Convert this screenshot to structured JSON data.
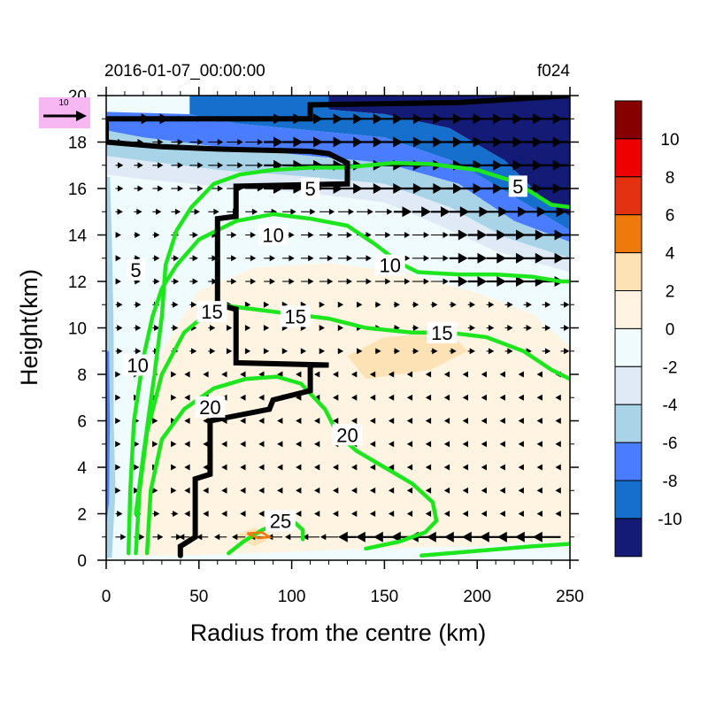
{
  "chart_data": {
    "type": "contour",
    "title_left": "2016-01-07_00:00:00",
    "title_right": "f024",
    "xlabel": "Radius from the centre (km)",
    "ylabel": "Height(km)",
    "xlim": [
      0,
      250
    ],
    "ylim": [
      0,
      20
    ],
    "x_ticks": [
      0,
      50,
      100,
      150,
      200,
      250
    ],
    "y_ticks": [
      0,
      2,
      4,
      6,
      8,
      10,
      12,
      14,
      16,
      18,
      20
    ],
    "reference_vector": {
      "label": "10",
      "color": "#f7b7f2"
    },
    "colorbar": {
      "levels": [
        "10",
        "8",
        "6",
        "4",
        "2",
        "0",
        "-2",
        "-4",
        "-6",
        "-8",
        "-10"
      ],
      "colors": [
        "#870000",
        "#ee0000",
        "#e23212",
        "#ed7a0a",
        "#fde2b6",
        "#fff4e2",
        "#f0fbfd",
        "#dfeaf6",
        "#a9d3e6",
        "#4a7cff",
        "#166fcc",
        "#131b77"
      ]
    },
    "fill_regions": [
      {
        "level": "-10",
        "color": "#131b77",
        "points": [
          [
            120,
            20
          ],
          [
            250,
            20
          ],
          [
            250,
            14.8
          ],
          [
            235,
            15.6
          ],
          [
            215,
            17.2
          ],
          [
            185,
            18.6
          ],
          [
            150,
            19.2
          ],
          [
            120,
            19.4
          ]
        ]
      },
      {
        "level": "-8",
        "color": "#166fcc",
        "points": [
          [
            45,
            20
          ],
          [
            120,
            20
          ],
          [
            120,
            19.4
          ],
          [
            150,
            19.2
          ],
          [
            185,
            18.6
          ],
          [
            215,
            17.2
          ],
          [
            235,
            15.6
          ],
          [
            250,
            14.8
          ],
          [
            250,
            14.2
          ],
          [
            225,
            15.4
          ],
          [
            190,
            17.1
          ],
          [
            150,
            18.2
          ],
          [
            110,
            18.5
          ],
          [
            70,
            18.8
          ],
          [
            45,
            19.2
          ]
        ]
      },
      {
        "level": "-6",
        "color": "#4a7cff",
        "points": [
          [
            0,
            19.3
          ],
          [
            45,
            19.2
          ],
          [
            70,
            18.8
          ],
          [
            110,
            18.5
          ],
          [
            150,
            18.2
          ],
          [
            190,
            17.1
          ],
          [
            225,
            15.4
          ],
          [
            250,
            14.2
          ],
          [
            250,
            13.7
          ],
          [
            220,
            14.6
          ],
          [
            190,
            16.2
          ],
          [
            150,
            17.1
          ],
          [
            110,
            17.4
          ],
          [
            60,
            17.8
          ],
          [
            20,
            18.2
          ],
          [
            0,
            18.5
          ]
        ]
      },
      {
        "level": "-4",
        "color": "#a9d3e6",
        "points": [
          [
            0,
            18.5
          ],
          [
            20,
            18.2
          ],
          [
            60,
            17.8
          ],
          [
            110,
            17.4
          ],
          [
            150,
            17.1
          ],
          [
            190,
            16.2
          ],
          [
            220,
            14.6
          ],
          [
            250,
            13.7
          ],
          [
            250,
            13.0
          ],
          [
            215,
            13.9
          ],
          [
            185,
            15.2
          ],
          [
            150,
            16.2
          ],
          [
            110,
            16.5
          ],
          [
            60,
            16.8
          ],
          [
            20,
            17.2
          ],
          [
            0,
            17.4
          ]
        ]
      },
      {
        "level": "-2",
        "color": "#dfeaf6",
        "points": [
          [
            0,
            17.4
          ],
          [
            20,
            17.2
          ],
          [
            60,
            16.8
          ],
          [
            110,
            16.5
          ],
          [
            150,
            16.2
          ],
          [
            185,
            15.2
          ],
          [
            215,
            13.9
          ],
          [
            250,
            13.0
          ],
          [
            250,
            12.4
          ],
          [
            210,
            13.3
          ],
          [
            180,
            14.4
          ],
          [
            150,
            15.4
          ],
          [
            110,
            15.8
          ],
          [
            60,
            16.1
          ],
          [
            20,
            16.4
          ],
          [
            0,
            16.6
          ]
        ]
      },
      {
        "level": "2",
        "color": "#fff4e2",
        "points": [
          [
            18,
            0.2
          ],
          [
            40,
            0.2
          ],
          [
            80,
            0.3
          ],
          [
            140,
            0.5
          ],
          [
            200,
            0.6
          ],
          [
            250,
            0.8
          ],
          [
            250,
            9.2
          ],
          [
            230,
            10.6
          ],
          [
            200,
            11.5
          ],
          [
            160,
            12.4
          ],
          [
            120,
            12.8
          ],
          [
            80,
            12.6
          ],
          [
            50,
            11.6
          ],
          [
            30,
            9.0
          ],
          [
            20,
            5.0
          ]
        ]
      },
      {
        "level": "4",
        "color": "#fde2b6",
        "points": [
          [
            80,
            0.6
          ],
          [
            90,
            1.0
          ],
          [
            80,
            1.4
          ],
          [
            68,
            1.0
          ]
        ]
      },
      {
        "level": "4",
        "color": "#fde2b6",
        "points": [
          [
            140,
            7.8
          ],
          [
            175,
            8.2
          ],
          [
            195,
            9.0
          ],
          [
            185,
            9.8
          ],
          [
            150,
            9.6
          ],
          [
            130,
            8.8
          ]
        ]
      },
      {
        "level": "-4",
        "color": "#a9d3e6",
        "points": [
          [
            0,
            0.1
          ],
          [
            3,
            0.1
          ],
          [
            5,
            3.0
          ],
          [
            4,
            6.0
          ],
          [
            4,
            10.0
          ],
          [
            3,
            14.0
          ],
          [
            2,
            16.5
          ],
          [
            0,
            16.5
          ]
        ]
      },
      {
        "level": "-6",
        "color": "#4a7cff",
        "points": [
          [
            0,
            1.5
          ],
          [
            1.5,
            2.5
          ],
          [
            2,
            6.0
          ],
          [
            1.5,
            9.0
          ],
          [
            0,
            9.0
          ]
        ]
      }
    ],
    "wind_contours": [
      {
        "level": "5",
        "points": [
          [
            128,
            16.9
          ],
          [
            155,
            17.1
          ],
          [
            175,
            17.05
          ],
          [
            200,
            16.8
          ],
          [
            220,
            16.3
          ],
          [
            232,
            15.7
          ],
          [
            240,
            15.3
          ],
          [
            250,
            15.2
          ]
        ]
      },
      {
        "level": "5",
        "points": [
          [
            16,
            2.0
          ],
          [
            20,
            4.5
          ],
          [
            26,
            8.0
          ],
          [
            30,
            10.5
          ],
          [
            32,
            12.7
          ],
          [
            38,
            14.2
          ],
          [
            46,
            15.2
          ],
          [
            58,
            16.2
          ],
          [
            72,
            16.6
          ],
          [
            90,
            16.8
          ],
          [
            110,
            16.9
          ],
          [
            128,
            16.9
          ]
        ]
      },
      {
        "level": "10",
        "points": [
          [
            12,
            0.3
          ],
          [
            13,
            3.0
          ],
          [
            15,
            6.0
          ],
          [
            20,
            8.7
          ],
          [
            25,
            10.5
          ],
          [
            30,
            11.7
          ],
          [
            38,
            12.7
          ],
          [
            50,
            13.8
          ],
          [
            70,
            14.6
          ],
          [
            90,
            14.9
          ],
          [
            110,
            14.7
          ],
          [
            130,
            14.4
          ],
          [
            145,
            13.6
          ],
          [
            158,
            12.8
          ],
          [
            168,
            12.4
          ],
          [
            190,
            12.3
          ],
          [
            210,
            12.3
          ],
          [
            230,
            12.2
          ],
          [
            245,
            12.0
          ],
          [
            250,
            12.0
          ]
        ]
      },
      {
        "level": "15",
        "points": [
          [
            16,
            0.3
          ],
          [
            18,
            3.0
          ],
          [
            22,
            5.5
          ],
          [
            30,
            8.0
          ],
          [
            42,
            9.8
          ],
          [
            60,
            11.0
          ],
          [
            80,
            10.8
          ],
          [
            100,
            10.6
          ],
          [
            120,
            10.4
          ],
          [
            140,
            10.0
          ],
          [
            165,
            9.8
          ],
          [
            185,
            9.8
          ],
          [
            205,
            9.6
          ],
          [
            225,
            9.0
          ],
          [
            240,
            8.2
          ],
          [
            250,
            7.8
          ]
        ]
      },
      {
        "level": "20",
        "points": [
          [
            22,
            0.3
          ],
          [
            24,
            3.0
          ],
          [
            30,
            5.2
          ],
          [
            42,
            6.5
          ],
          [
            58,
            7.4
          ],
          [
            75,
            7.8
          ],
          [
            92,
            7.9
          ],
          [
            105,
            7.6
          ],
          [
            118,
            6.5
          ],
          [
            125,
            5.4
          ],
          [
            135,
            4.7
          ],
          [
            150,
            4.0
          ],
          [
            165,
            3.3
          ],
          [
            176,
            2.5
          ],
          [
            178,
            1.7
          ],
          [
            172,
            1.2
          ],
          [
            158,
            0.8
          ],
          [
            140,
            0.5
          ]
        ]
      },
      {
        "level": "25",
        "points": [
          [
            66,
            0.3
          ],
          [
            74,
            0.8
          ],
          [
            84,
            1.3
          ],
          [
            94,
            1.6
          ],
          [
            102,
            1.6
          ],
          [
            106,
            1.3
          ],
          [
            106,
            0.9
          ]
        ]
      },
      {
        "level": "0",
        "points": [
          [
            170,
            0.2
          ],
          [
            200,
            0.4
          ],
          [
            230,
            0.6
          ],
          [
            250,
            0.7
          ]
        ]
      }
    ],
    "contour_labels": [
      {
        "text": "5",
        "x": 110,
        "y": 16.0
      },
      {
        "text": "5",
        "x": 222,
        "y": 16.1
      },
      {
        "text": "5",
        "x": 16,
        "y": 12.5
      },
      {
        "text": "10",
        "x": 90,
        "y": 14.0
      },
      {
        "text": "10",
        "x": 153,
        "y": 12.7
      },
      {
        "text": "10",
        "x": 17,
        "y": 8.4
      },
      {
        "text": "15",
        "x": 57,
        "y": 10.7
      },
      {
        "text": "15",
        "x": 102,
        "y": 10.5
      },
      {
        "text": "15",
        "x": 181,
        "y": 9.8
      },
      {
        "text": "20",
        "x": 56,
        "y": 6.6
      },
      {
        "text": "20",
        "x": 130,
        "y": 5.4
      },
      {
        "text": "25",
        "x": 94,
        "y": 1.7
      }
    ],
    "black_line": [
      [
        40,
        0.2
      ],
      [
        40,
        0.6
      ],
      [
        48,
        1.0
      ],
      [
        48,
        3.5
      ],
      [
        56,
        3.7
      ],
      [
        56,
        6.0
      ],
      [
        88,
        6.5
      ],
      [
        90,
        6.9
      ],
      [
        110,
        7.3
      ],
      [
        110,
        8.4
      ],
      [
        120,
        8.4
      ],
      [
        70,
        8.5
      ],
      [
        70,
        10.8
      ],
      [
        60,
        11.0
      ],
      [
        60,
        14.7
      ],
      [
        70,
        14.8
      ],
      [
        70,
        16.1
      ],
      [
        130,
        16.2
      ],
      [
        130,
        17.1
      ],
      [
        120,
        17.5
      ],
      [
        110,
        17.6
      ],
      [
        60,
        17.7
      ],
      [
        30,
        17.8
      ],
      [
        0,
        18.0
      ],
      [
        0,
        19.0
      ],
      [
        110,
        19.0
      ],
      [
        110,
        19.6
      ],
      [
        190,
        19.7
      ],
      [
        250,
        20.0
      ]
    ],
    "vector_field": {
      "x_step": 10,
      "y_step": 1
    }
  }
}
